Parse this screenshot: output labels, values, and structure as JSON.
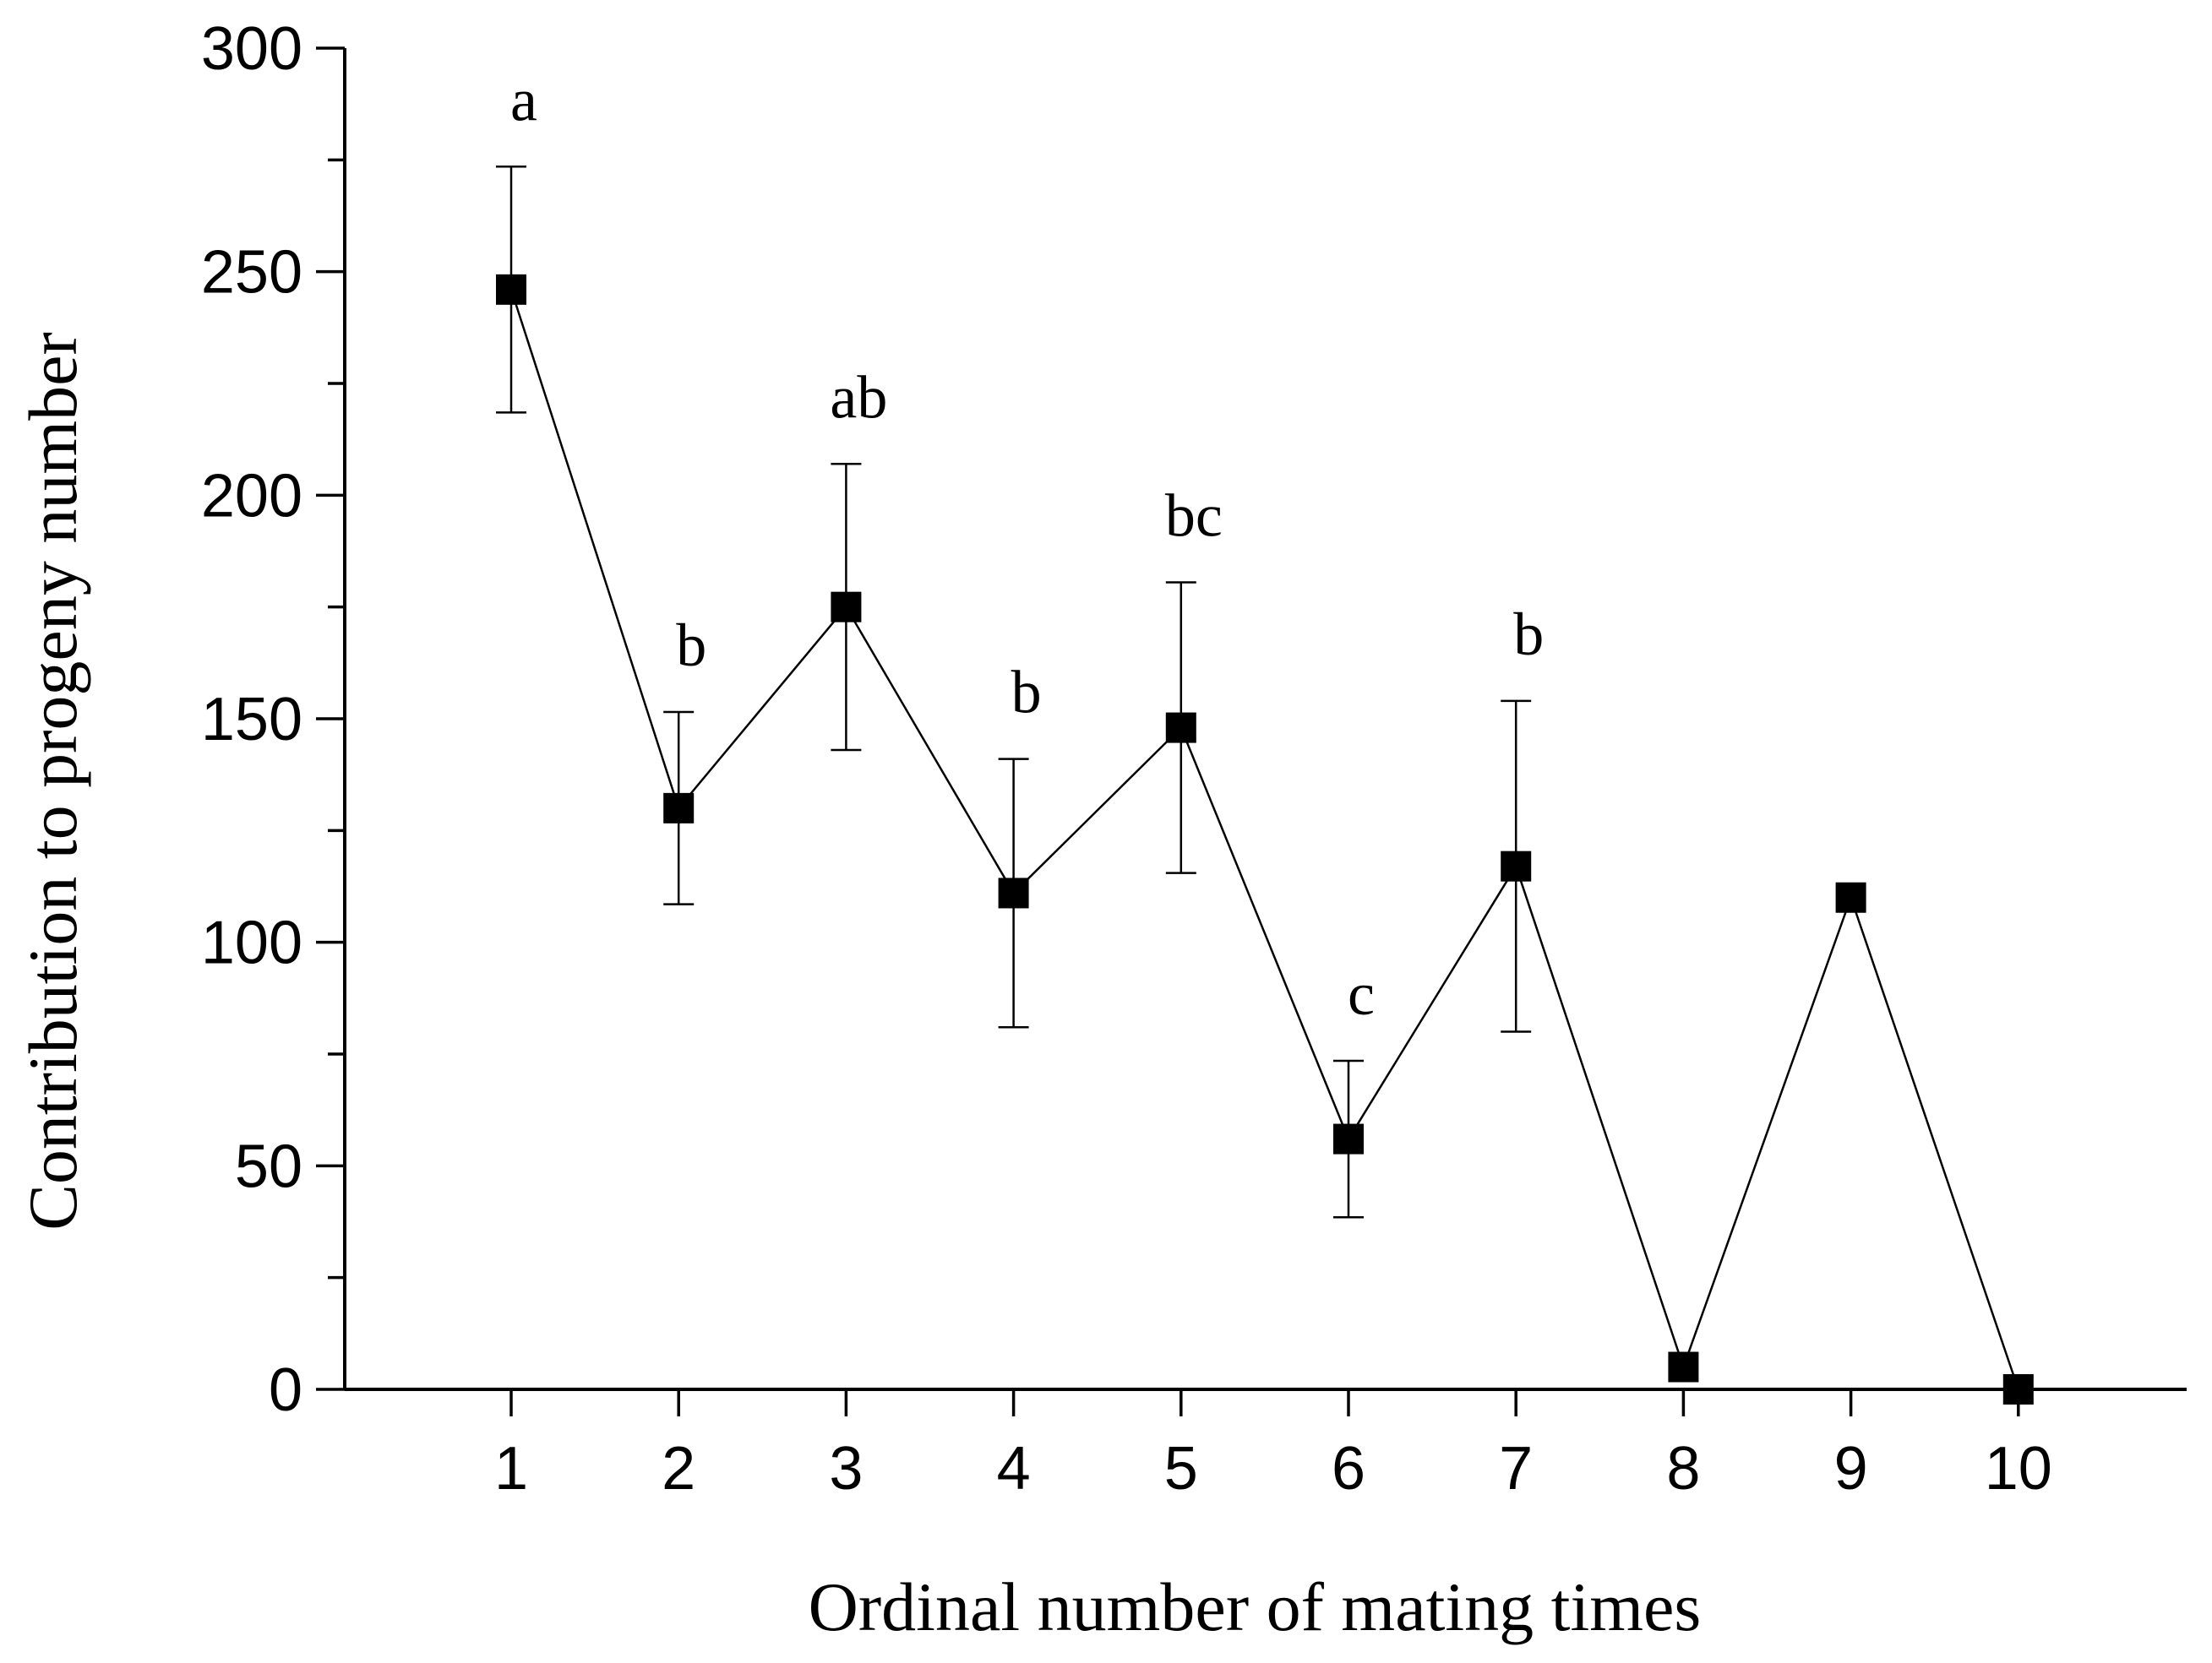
{
  "chart_data": {
    "type": "line",
    "title": "",
    "xlabel": "Ordinal number of mating times",
    "ylabel": "Contribution to progeny number",
    "x": [
      1,
      2,
      3,
      4,
      5,
      6,
      7,
      8,
      9,
      10
    ],
    "xticks": [
      "1",
      "2",
      "3",
      "4",
      "5",
      "6",
      "7",
      "8",
      "9",
      "10"
    ],
    "xlim": [
      0,
      11
    ],
    "ylim": [
      0,
      300
    ],
    "yticks": [
      0,
      50,
      100,
      150,
      200,
      250,
      300
    ],
    "ytick_labels": [
      "0",
      "50",
      "100",
      "150",
      "200",
      "250",
      "300"
    ],
    "yminor_step": 25,
    "grid": false,
    "series": [
      {
        "name": "Contribution to progeny number",
        "marker": "square",
        "color": "#000000",
        "values": [
          246,
          130,
          175,
          111,
          148,
          56,
          117,
          5,
          110,
          0
        ],
        "error": [
          27.5,
          21.5,
          32,
          30,
          32.5,
          17.5,
          37,
          null,
          null,
          null
        ],
        "significance": [
          "a",
          "b",
          "ab",
          "b",
          "bc",
          "c",
          "b",
          "",
          "",
          ""
        ]
      }
    ]
  }
}
